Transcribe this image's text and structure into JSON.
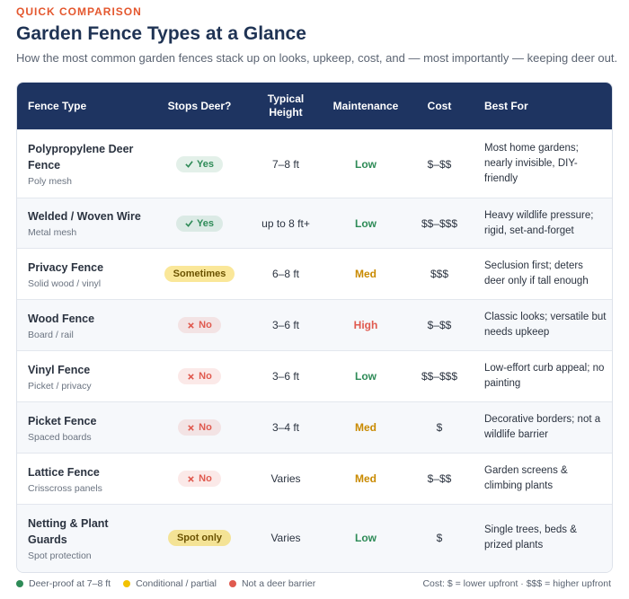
{
  "header": {
    "eyebrow": "QUICK COMPARISON",
    "title": "Garden Fence Types at a Glance",
    "subtitle": "How the most common garden fences stack up on looks, upkeep, cost, and — most importantly — keeping deer out."
  },
  "table": {
    "columns": [
      "Fence Type",
      "Stops Deer?",
      "Typical Height",
      "Maintenance",
      "Cost",
      "Best For"
    ],
    "rows": [
      {
        "name": "Polypropylene Deer Fence",
        "material": "Poly mesh",
        "stops_deer": "Yes",
        "badge_color": "#2e8b57",
        "height": "7–8 ft",
        "maintenance": "Low",
        "maintenance_color": "#2e8b57",
        "cost": "$–$$",
        "best_for": "Most home gardens; nearly invisible, DIY-friendly"
      },
      {
        "name": "Welded / Woven Wire",
        "material": "Metal mesh",
        "stops_deer": "Yes",
        "badge_color": "#2e8b57",
        "height": "up to 8 ft+",
        "maintenance": "Low",
        "maintenance_color": "#2e8b57",
        "cost": "$$–$$$",
        "best_for": "Heavy wildlife pressure; rigid, set-and-forget"
      },
      {
        "name": "Privacy Fence",
        "material": "Solid wood / vinyl",
        "stops_deer": "Sometimes",
        "badge_color": "#f2c200",
        "height": "6–8 ft",
        "maintenance": "Med",
        "maintenance_color": "#c98a00",
        "cost": "$$$",
        "best_for": "Seclusion first; deters deer only if tall enough"
      },
      {
        "name": "Wood Fence",
        "material": "Board / rail",
        "stops_deer": "No",
        "badge_color": "#e05a4f",
        "height": "3–6 ft",
        "maintenance": "High",
        "maintenance_color": "#e05a4f",
        "cost": "$–$$",
        "best_for": "Classic looks; versatile but needs upkeep"
      },
      {
        "name": "Vinyl Fence",
        "material": "Picket / privacy",
        "stops_deer": "No",
        "badge_color": "#e05a4f",
        "height": "3–6 ft",
        "maintenance": "Low",
        "maintenance_color": "#2e8b57",
        "cost": "$$–$$$",
        "best_for": "Low-effort curb appeal; no painting"
      },
      {
        "name": "Picket Fence",
        "material": "Spaced boards",
        "stops_deer": "No",
        "badge_color": "#e05a4f",
        "height": "3–4 ft",
        "maintenance": "Med",
        "maintenance_color": "#c98a00",
        "cost": "$",
        "best_for": "Decorative borders; not a wildlife barrier"
      },
      {
        "name": "Lattice Fence",
        "material": "Crisscross panels",
        "stops_deer": "No",
        "badge_color": "#e05a4f",
        "height": "Varies",
        "maintenance": "Med",
        "maintenance_color": "#c98a00",
        "cost": "$–$$",
        "best_for": "Garden screens & climbing plants"
      },
      {
        "name": "Netting & Plant Guards",
        "material": "Spot protection",
        "stops_deer": "Spot only",
        "badge_color": "#f2c200",
        "height": "Varies",
        "maintenance": "Low",
        "maintenance_color": "#2e8b57",
        "cost": "$",
        "best_for": "Single trees, beds & prized plants"
      }
    ]
  },
  "legend": {
    "items": [
      {
        "label": "Deer-proof at 7–8 ft",
        "color": "#2e8b57"
      },
      {
        "label": "Conditional / partial",
        "color": "#f2c200"
      },
      {
        "label": "Not a deer barrier",
        "color": "#e05a4f"
      }
    ],
    "note": "Cost: $ = lower upfront · $$$ = higher upfront"
  }
}
